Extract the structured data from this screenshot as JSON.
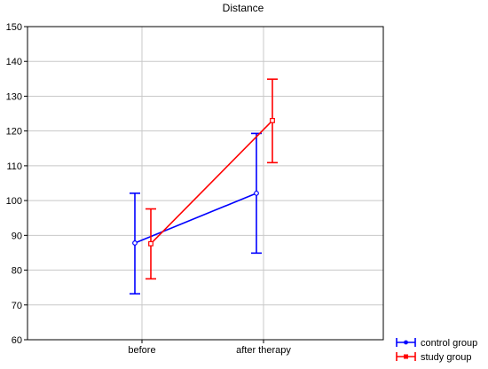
{
  "chart_data": {
    "type": "line",
    "title": "Distance",
    "xlabel": "",
    "ylabel": "",
    "categories": [
      "before",
      "after therapy"
    ],
    "ylim": [
      60,
      150
    ],
    "yticks": [
      60,
      70,
      80,
      90,
      100,
      110,
      120,
      130,
      140,
      150
    ],
    "grid": true,
    "legend_position": "bottom-right",
    "series": [
      {
        "name": "control group",
        "color": "#0000ff",
        "marker": "circle",
        "values": [
          87.8,
          102.1
        ],
        "error_low": [
          73.2,
          84.9
        ],
        "error_high": [
          102.1,
          119.3
        ]
      },
      {
        "name": "study group",
        "color": "#ff0000",
        "marker": "square",
        "values": [
          87.6,
          123.0
        ],
        "error_low": [
          77.5,
          110.9
        ],
        "error_high": [
          97.6,
          134.9
        ]
      }
    ]
  }
}
